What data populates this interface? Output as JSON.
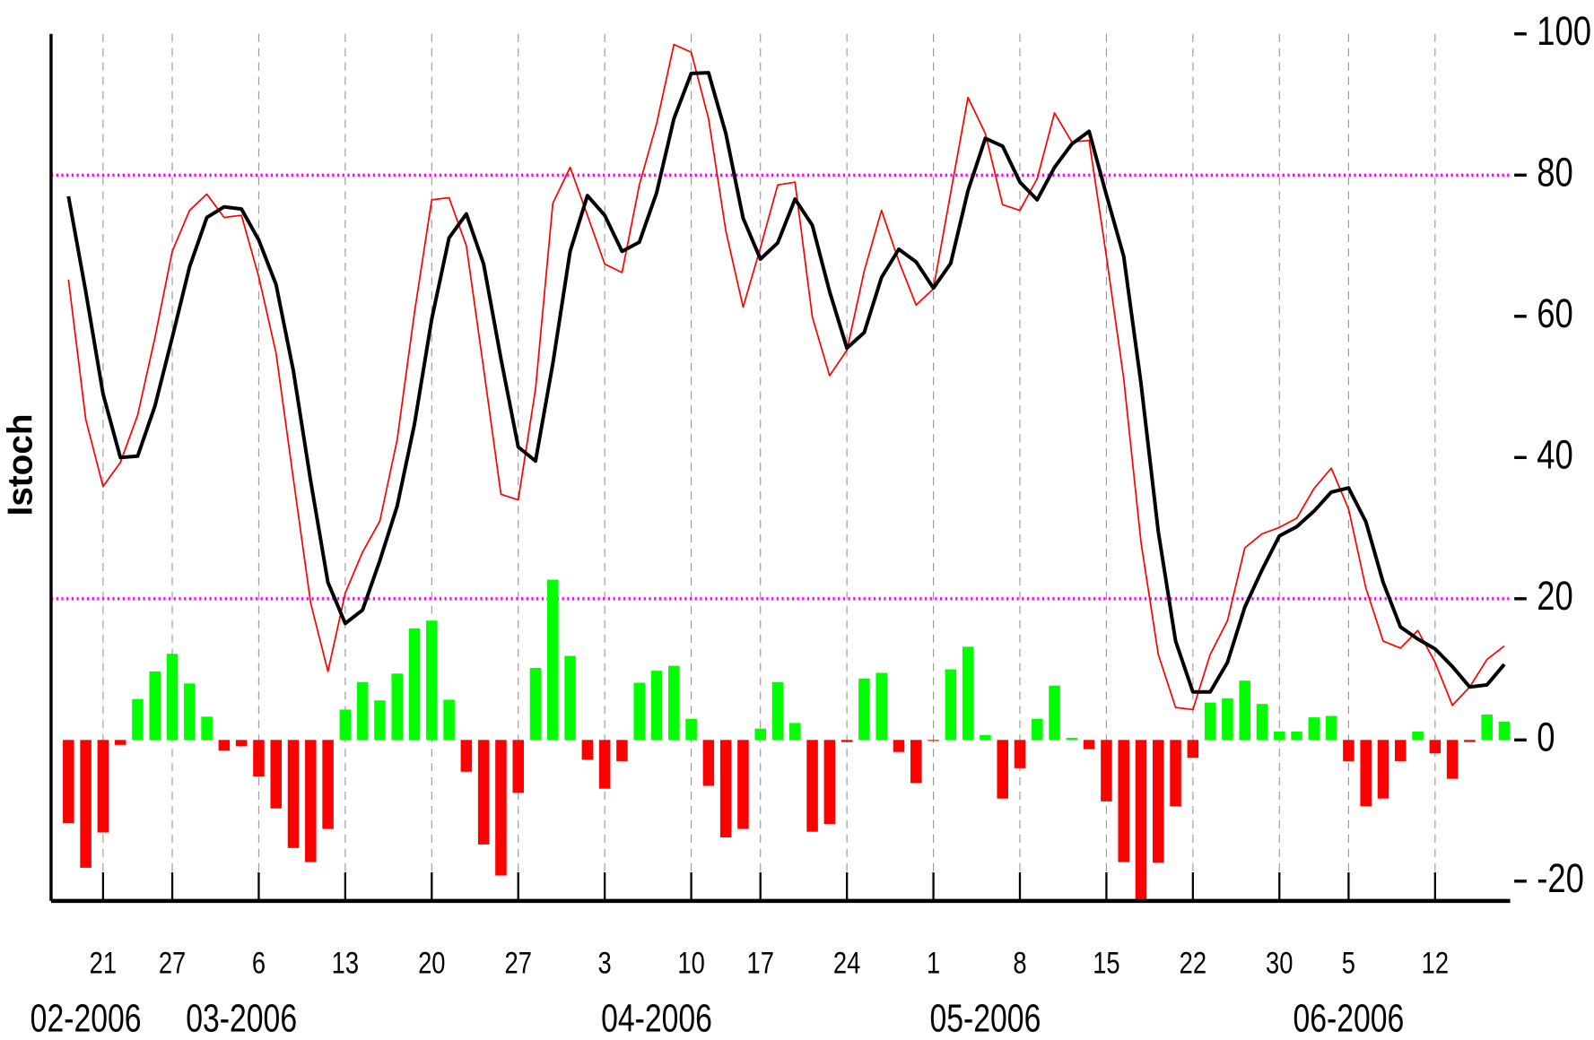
{
  "chart_data": {
    "type": "stochastic",
    "ylabel": "Istoch",
    "x": [
      "2006-02-16",
      "2006-02-17",
      "2006-02-21",
      "2006-02-22",
      "2006-02-23",
      "2006-02-24",
      "2006-02-27",
      "2006-02-28",
      "2006-03-01",
      "2006-03-02",
      "2006-03-03",
      "2006-03-06",
      "2006-03-07",
      "2006-03-08",
      "2006-03-09",
      "2006-03-10",
      "2006-03-13",
      "2006-03-14",
      "2006-03-15",
      "2006-03-16",
      "2006-03-17",
      "2006-03-20",
      "2006-03-21",
      "2006-03-22",
      "2006-03-23",
      "2006-03-24",
      "2006-03-27",
      "2006-03-28",
      "2006-03-29",
      "2006-03-30",
      "2006-03-31",
      "2006-04-03",
      "2006-04-04",
      "2006-04-05",
      "2006-04-06",
      "2006-04-07",
      "2006-04-10",
      "2006-04-11",
      "2006-04-12",
      "2006-04-13",
      "2006-04-17",
      "2006-04-18",
      "2006-04-19",
      "2006-04-20",
      "2006-04-21",
      "2006-04-24",
      "2006-04-25",
      "2006-04-26",
      "2006-04-27",
      "2006-04-28",
      "2006-05-01",
      "2006-05-02",
      "2006-05-03",
      "2006-05-04",
      "2006-05-05",
      "2006-05-08",
      "2006-05-09",
      "2006-05-10",
      "2006-05-11",
      "2006-05-12",
      "2006-05-15",
      "2006-05-16",
      "2006-05-17",
      "2006-05-18",
      "2006-05-19",
      "2006-05-22",
      "2006-05-23",
      "2006-05-24",
      "2006-05-25",
      "2006-05-26",
      "2006-05-30",
      "2006-05-31",
      "2006-06-01",
      "2006-06-02",
      "2006-06-05",
      "2006-06-06",
      "2006-06-07",
      "2006-06-08",
      "2006-06-09",
      "2006-06-12",
      "2006-06-13",
      "2006-06-14",
      "2006-06-15",
      "2006-06-16"
    ],
    "series": [
      {
        "type": "bar",
        "positive_color": "#00ff00",
        "negative_color": "#ff0000",
        "values": [
          -11.8,
          -18.1,
          -13.1,
          -0.7,
          5.8,
          9.7,
          12.2,
          8,
          3.3,
          -1.5,
          -0.9,
          -5.2,
          -9.7,
          -15.3,
          -17.3,
          -12.6,
          4.3,
          8.2,
          5.6,
          9.4,
          15.8,
          16.9,
          5.7,
          -4.5,
          -14.8,
          -19.2,
          -7.5,
          10.2,
          22.7,
          11.9,
          -2.8,
          -6.9,
          -3,
          8.1,
          9.8,
          10.5,
          3,
          -6.5,
          -13.8,
          -12.6,
          1.6,
          8.2,
          2.4,
          -13,
          -11.9,
          -0.3,
          8.7,
          9.5,
          -1.7,
          -6.1,
          -0.1,
          10,
          13.2,
          0.7,
          -8.3,
          -4,
          3,
          7.7,
          0.3,
          -1.3,
          -8.7,
          -17.3,
          -22.5,
          -17.4,
          -9.4,
          -2.5,
          5.3,
          5.9,
          8.4,
          5.1,
          1.2,
          1.2,
          3.2,
          3.4,
          -3,
          -9.4,
          -8.3,
          -3,
          1.2,
          -1.9,
          -5.5,
          -0.3,
          3.6,
          2.6
        ]
      },
      {
        "type": "line",
        "color": "#ff0000",
        "width": 1.5,
        "values": [
          65.2,
          45.4,
          35.9,
          39.3,
          46,
          57,
          69.2,
          75,
          77.3,
          74,
          74.3,
          65.6,
          54.8,
          37,
          19.4,
          9.7,
          20.8,
          26.6,
          31,
          42.5,
          60.5,
          76.5,
          76.8,
          70,
          52.6,
          34.8,
          34,
          49.7,
          76,
          81.1,
          74.3,
          67.4,
          66.2,
          78.6,
          87.3,
          98.5,
          97.4,
          88,
          72.1,
          61.3,
          69.7,
          78.6,
          79,
          59.9,
          51.6,
          55.2,
          66.4,
          75,
          67.8,
          61.6,
          63.9,
          77.5,
          91,
          85.9,
          75.8,
          75,
          79.5,
          88.8,
          84.7,
          84.9,
          68.5,
          51.2,
          28,
          12.1,
          4.6,
          4.3,
          12.1,
          16.9,
          27.2,
          29.2,
          30.1,
          31.4,
          35.6,
          38.5,
          32.7,
          21.5,
          14,
          13,
          15.5,
          11,
          4.9,
          7.5,
          11.4,
          13.3
        ]
      },
      {
        "type": "line",
        "color": "#000000",
        "width": 3.5,
        "values": [
          77,
          63.5,
          49,
          40,
          40.2,
          47.3,
          57,
          67,
          74,
          75.5,
          75.2,
          70.8,
          64.5,
          52.3,
          36.7,
          22.3,
          16.5,
          18.4,
          25.4,
          33.1,
          44.7,
          59.6,
          71.1,
          74.5,
          67.4,
          54,
          41.5,
          39.5,
          53.3,
          69.2,
          77.1,
          74.3,
          69.2,
          70.5,
          77.5,
          88,
          94.4,
          94.5,
          85.9,
          73.9,
          68.1,
          70.4,
          76.6,
          72.9,
          63.5,
          55.5,
          57.7,
          65.5,
          69.5,
          67.7,
          64,
          67.5,
          77.8,
          85.2,
          84.1,
          79,
          76.5,
          81.1,
          84.4,
          86.2,
          77.2,
          68.5,
          50.5,
          29.5,
          14,
          6.8,
          6.8,
          11,
          18.8,
          24.1,
          28.9,
          30.2,
          32.4,
          35.1,
          35.7,
          30.9,
          22.3,
          16,
          14.3,
          12.9,
          10.4,
          7.5,
          7.8,
          10.7
        ]
      }
    ],
    "hlines": [
      80,
      20
    ],
    "hline_color": "#ff00ff",
    "ylim": [
      -22.8,
      100
    ],
    "yticks": [
      -20,
      0,
      20,
      40,
      60,
      80,
      100
    ],
    "xticks": [
      {
        "value": "2006-02-21",
        "label": "21"
      },
      {
        "value": "2006-02-27",
        "label": "27"
      },
      {
        "value": "2006-03-06",
        "label": "6"
      },
      {
        "value": "2006-03-13",
        "label": "13"
      },
      {
        "value": "2006-03-20",
        "label": "20"
      },
      {
        "value": "2006-03-27",
        "label": "27"
      },
      {
        "value": "2006-04-03",
        "label": "3"
      },
      {
        "value": "2006-04-10",
        "label": "10"
      },
      {
        "value": "2006-04-17",
        "label": "17"
      },
      {
        "value": "2006-04-24",
        "label": "24"
      },
      {
        "value": "2006-05-01",
        "label": "1"
      },
      {
        "value": "2006-05-08",
        "label": "8"
      },
      {
        "value": "2006-05-15",
        "label": "15"
      },
      {
        "value": "2006-05-22",
        "label": "22"
      },
      {
        "value": "2006-05-30",
        "label": "30"
      },
      {
        "value": "2006-06-05",
        "label": "5"
      },
      {
        "value": "2006-06-12",
        "label": "12"
      }
    ],
    "month_labels": [
      {
        "value": "2006-02-17",
        "label": "02-2006"
      },
      {
        "value": "2006-03-03",
        "label": "03-2006"
      },
      {
        "value": "2006-04-06",
        "label": "04-2006"
      },
      {
        "value": "2006-05-04",
        "label": "05-2006"
      },
      {
        "value": "2006-06-05",
        "label": "06-2006"
      }
    ],
    "grid": true
  }
}
